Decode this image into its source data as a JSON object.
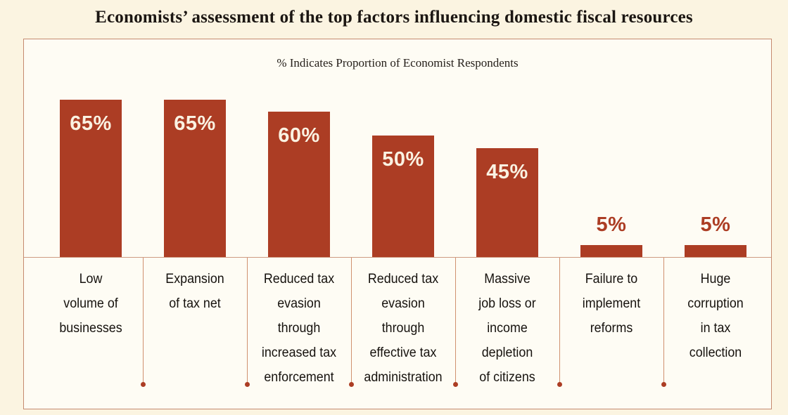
{
  "colors": {
    "page_background": "#FBF4E1",
    "panel_background": "#FEFCF4",
    "panel_border": "#C58A70",
    "bar": "#AC3D24",
    "value_label_inside": "#FAF2E2",
    "value_label_outside": "#AC3D24",
    "axis_line": "#CE9A82",
    "divider_line": "#D0916F",
    "divider_dot": "#AC3D24",
    "title_text": "#1B1612",
    "category_text": "#16120E"
  },
  "chart_data": {
    "type": "bar",
    "title": "Economists’ assessment of the top factors influencing domestic fiscal resources",
    "subtitle": "% Indicates Proportion of Economist Respondents",
    "unit": "%",
    "categories": [
      "Low volume of businesses",
      "Expansion of tax net",
      "Reduced tax evasion through increased tax enforcement",
      "Reduced tax evasion through effective tax administration",
      "Massive job loss or income depletion of citizens",
      "Failure to implement reforms",
      "Huge corruption in tax collection"
    ],
    "category_lines": [
      [
        "Low",
        "volume of",
        "businesses"
      ],
      [
        "Expansion",
        "of tax net"
      ],
      [
        "Reduced tax",
        "evasion",
        "through",
        "increased tax",
        "enforcement"
      ],
      [
        "Reduced tax",
        "evasion",
        "through",
        "effective tax",
        "administration"
      ],
      [
        "Massive",
        "job loss or",
        "income",
        "depletion",
        "of citizens"
      ],
      [
        "Failure to",
        "implement",
        "reforms"
      ],
      [
        "Huge",
        "corruption",
        "in tax",
        "collection"
      ]
    ],
    "values": [
      65,
      65,
      60,
      50,
      45,
      5,
      5
    ],
    "value_labels": [
      "65%",
      "65%",
      "60%",
      "50%",
      "45%",
      "5%",
      "5%"
    ],
    "xlabel": "",
    "ylabel": "",
    "ylim": [
      0,
      90
    ],
    "grid": false,
    "legend": false,
    "value_label_placement": "inside bar top for values >= 45, above bar for values of 5"
  }
}
